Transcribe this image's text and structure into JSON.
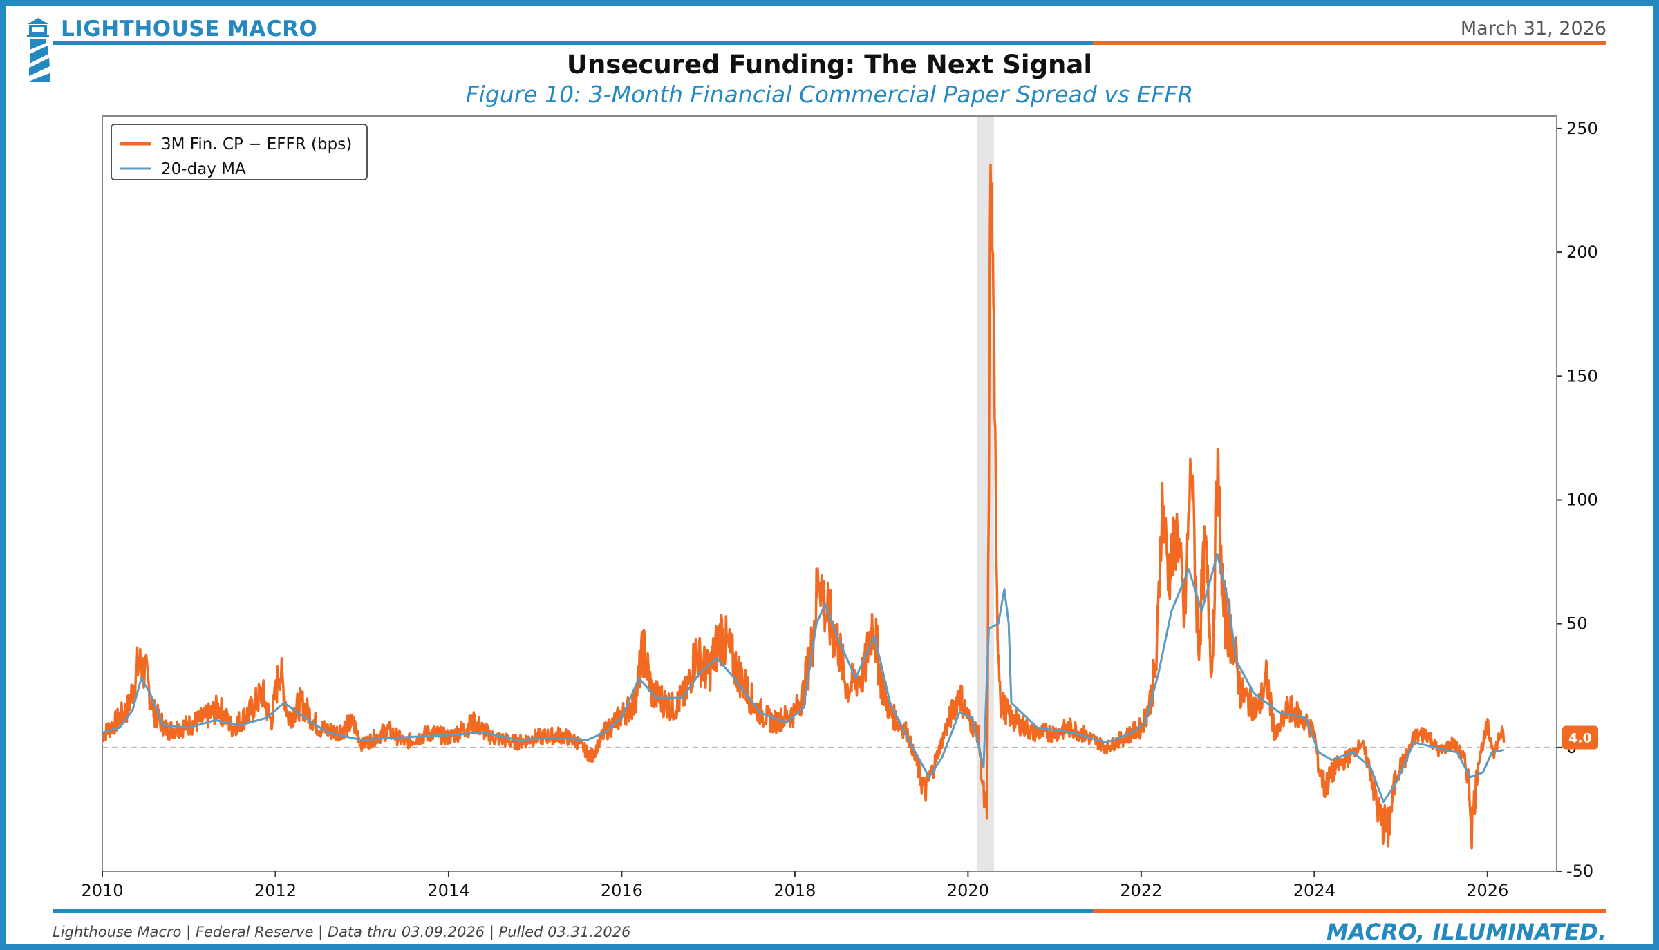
{
  "header": {
    "brand": "LIGHTHOUSE MACRO",
    "date": "March 31, 2026",
    "title": "Unsecured Funding: The Next Signal",
    "subtitle": "Figure 10: 3-Month Financial Commercial Paper Spread vs EFFR"
  },
  "footer": {
    "source": "Lighthouse Macro | Federal Reserve | Data thru 03.09.2026 | Pulled 03.31.2026",
    "tagline": "MACRO, ILLUMINATED."
  },
  "colors": {
    "brand_blue": "#2389c0",
    "accent_orange": "#f26a22",
    "ma_line": "#5b9bc4",
    "recession_band": "#e6e6e6",
    "zero_line": "#bbbbbb"
  },
  "chart_data": {
    "type": "line",
    "title": "Unsecured Funding: The Next Signal",
    "subtitle": "Figure 10: 3-Month Financial Commercial Paper Spread vs EFFR",
    "xlabel": "",
    "ylabel": "",
    "xlim": [
      2010.0,
      2026.8
    ],
    "ylim": [
      -50,
      255
    ],
    "y_axis_side": "right",
    "x_ticks": [
      2010,
      2012,
      2014,
      2016,
      2018,
      2020,
      2022,
      2024,
      2026
    ],
    "x_tick_labels": [
      "2010",
      "2012",
      "2014",
      "2016",
      "2018",
      "2020",
      "2022",
      "2024",
      "2026"
    ],
    "y_ticks": [
      -50,
      0,
      50,
      100,
      150,
      200,
      250
    ],
    "y_tick_labels": [
      "-50",
      "0",
      "50",
      "100",
      "150",
      "200",
      "250"
    ],
    "zero_line": true,
    "legend_position": "top-left",
    "shaded_regions": [
      {
        "start": 2020.1,
        "end": 2020.3,
        "label": "recession"
      }
    ],
    "last_value_label": "4.0",
    "last_value": 4.0,
    "series": [
      {
        "name": "3M Fin. CP − EFFR (bps)",
        "color": "#f26a22",
        "points": [
          [
            2010.0,
            5
          ],
          [
            2010.15,
            10
          ],
          [
            2010.3,
            16
          ],
          [
            2010.42,
            34
          ],
          [
            2010.5,
            30
          ],
          [
            2010.6,
            14
          ],
          [
            2010.75,
            7
          ],
          [
            2011.0,
            9
          ],
          [
            2011.2,
            12
          ],
          [
            2011.35,
            16
          ],
          [
            2011.5,
            8
          ],
          [
            2011.7,
            14
          ],
          [
            2011.85,
            22
          ],
          [
            2011.95,
            10
          ],
          [
            2012.05,
            32
          ],
          [
            2012.15,
            12
          ],
          [
            2012.3,
            18
          ],
          [
            2012.5,
            8
          ],
          [
            2012.7,
            6
          ],
          [
            2012.9,
            10
          ],
          [
            2013.0,
            1
          ],
          [
            2013.3,
            7
          ],
          [
            2013.5,
            2
          ],
          [
            2013.8,
            6
          ],
          [
            2014.0,
            4
          ],
          [
            2014.3,
            10
          ],
          [
            2014.5,
            4
          ],
          [
            2014.8,
            2
          ],
          [
            2015.0,
            4
          ],
          [
            2015.3,
            5
          ],
          [
            2015.5,
            2
          ],
          [
            2015.65,
            -4
          ],
          [
            2015.8,
            6
          ],
          [
            2016.0,
            13
          ],
          [
            2016.15,
            18
          ],
          [
            2016.25,
            40
          ],
          [
            2016.35,
            22
          ],
          [
            2016.6,
            16
          ],
          [
            2016.75,
            22
          ],
          [
            2016.85,
            38
          ],
          [
            2017.0,
            30
          ],
          [
            2017.15,
            46
          ],
          [
            2017.35,
            30
          ],
          [
            2017.55,
            16
          ],
          [
            2017.75,
            10
          ],
          [
            2018.0,
            14
          ],
          [
            2018.1,
            22
          ],
          [
            2018.2,
            42
          ],
          [
            2018.28,
            72
          ],
          [
            2018.35,
            56
          ],
          [
            2018.5,
            42
          ],
          [
            2018.6,
            24
          ],
          [
            2018.8,
            30
          ],
          [
            2018.9,
            52
          ],
          [
            2019.0,
            26
          ],
          [
            2019.1,
            14
          ],
          [
            2019.3,
            6
          ],
          [
            2019.4,
            -6
          ],
          [
            2019.5,
            -18
          ],
          [
            2019.6,
            -8
          ],
          [
            2019.75,
            8
          ],
          [
            2019.9,
            22
          ],
          [
            2020.0,
            12
          ],
          [
            2020.12,
            5
          ],
          [
            2020.18,
            -20
          ],
          [
            2020.22,
            -28
          ],
          [
            2020.26,
            242
          ],
          [
            2020.3,
            170
          ],
          [
            2020.33,
            60
          ],
          [
            2020.38,
            18
          ],
          [
            2020.5,
            12
          ],
          [
            2020.75,
            6
          ],
          [
            2021.0,
            6
          ],
          [
            2021.2,
            8
          ],
          [
            2021.4,
            4
          ],
          [
            2021.6,
            0
          ],
          [
            2021.8,
            4
          ],
          [
            2022.0,
            8
          ],
          [
            2022.1,
            18
          ],
          [
            2022.18,
            35
          ],
          [
            2022.24,
            100
          ],
          [
            2022.32,
            70
          ],
          [
            2022.42,
            88
          ],
          [
            2022.5,
            50
          ],
          [
            2022.58,
            118
          ],
          [
            2022.66,
            40
          ],
          [
            2022.74,
            82
          ],
          [
            2022.82,
            30
          ],
          [
            2022.88,
            116
          ],
          [
            2022.95,
            55
          ],
          [
            2023.05,
            45
          ],
          [
            2023.15,
            22
          ],
          [
            2023.35,
            15
          ],
          [
            2023.45,
            28
          ],
          [
            2023.55,
            4
          ],
          [
            2023.7,
            16
          ],
          [
            2023.85,
            12
          ],
          [
            2024.0,
            6
          ],
          [
            2024.05,
            -8
          ],
          [
            2024.12,
            -16
          ],
          [
            2024.25,
            -8
          ],
          [
            2024.4,
            -4
          ],
          [
            2024.55,
            2
          ],
          [
            2024.65,
            -10
          ],
          [
            2024.75,
            -28
          ],
          [
            2024.85,
            -34
          ],
          [
            2024.95,
            -10
          ],
          [
            2025.05,
            -5
          ],
          [
            2025.15,
            4
          ],
          [
            2025.3,
            6
          ],
          [
            2025.45,
            -2
          ],
          [
            2025.6,
            2
          ],
          [
            2025.72,
            -4
          ],
          [
            2025.78,
            -12
          ],
          [
            2025.82,
            -32
          ],
          [
            2025.9,
            -4
          ],
          [
            2026.0,
            8
          ],
          [
            2026.08,
            -2
          ],
          [
            2026.15,
            6
          ],
          [
            2026.19,
            4
          ]
        ]
      },
      {
        "name": "20-day MA",
        "color": "#5b9bc4",
        "points": [
          [
            2010.0,
            6
          ],
          [
            2010.2,
            8
          ],
          [
            2010.35,
            15
          ],
          [
            2010.45,
            28
          ],
          [
            2010.55,
            22
          ],
          [
            2010.7,
            9
          ],
          [
            2011.0,
            8
          ],
          [
            2011.3,
            11
          ],
          [
            2011.6,
            9
          ],
          [
            2011.9,
            12
          ],
          [
            2012.1,
            18
          ],
          [
            2012.3,
            13
          ],
          [
            2012.6,
            6
          ],
          [
            2013.0,
            3
          ],
          [
            2013.4,
            4
          ],
          [
            2014.0,
            5
          ],
          [
            2014.4,
            6
          ],
          [
            2014.8,
            3
          ],
          [
            2015.2,
            4
          ],
          [
            2015.6,
            3
          ],
          [
            2015.8,
            6
          ],
          [
            2016.0,
            12
          ],
          [
            2016.2,
            28
          ],
          [
            2016.4,
            20
          ],
          [
            2016.7,
            20
          ],
          [
            2016.9,
            30
          ],
          [
            2017.1,
            36
          ],
          [
            2017.3,
            28
          ],
          [
            2017.6,
            14
          ],
          [
            2017.9,
            10
          ],
          [
            2018.1,
            16
          ],
          [
            2018.25,
            50
          ],
          [
            2018.35,
            58
          ],
          [
            2018.5,
            44
          ],
          [
            2018.7,
            28
          ],
          [
            2018.92,
            45
          ],
          [
            2019.1,
            18
          ],
          [
            2019.3,
            4
          ],
          [
            2019.55,
            -12
          ],
          [
            2019.7,
            -4
          ],
          [
            2019.9,
            14
          ],
          [
            2020.05,
            12
          ],
          [
            2020.18,
            -8
          ],
          [
            2020.24,
            48
          ],
          [
            2020.35,
            50
          ],
          [
            2020.42,
            64
          ],
          [
            2020.47,
            50
          ],
          [
            2020.5,
            18
          ],
          [
            2020.8,
            8
          ],
          [
            2021.2,
            6
          ],
          [
            2021.6,
            2
          ],
          [
            2021.9,
            6
          ],
          [
            2022.05,
            10
          ],
          [
            2022.2,
            30
          ],
          [
            2022.35,
            55
          ],
          [
            2022.55,
            72
          ],
          [
            2022.7,
            55
          ],
          [
            2022.88,
            78
          ],
          [
            2023.0,
            60
          ],
          [
            2023.1,
            35
          ],
          [
            2023.3,
            22
          ],
          [
            2023.6,
            14
          ],
          [
            2023.9,
            12
          ],
          [
            2024.05,
            -2
          ],
          [
            2024.2,
            -5
          ],
          [
            2024.45,
            -2
          ],
          [
            2024.65,
            -8
          ],
          [
            2024.8,
            -22
          ],
          [
            2024.95,
            -14
          ],
          [
            2025.15,
            2
          ],
          [
            2025.4,
            0
          ],
          [
            2025.65,
            -2
          ],
          [
            2025.8,
            -12
          ],
          [
            2025.95,
            -10
          ],
          [
            2026.05,
            -2
          ],
          [
            2026.19,
            -1
          ]
        ]
      }
    ]
  }
}
